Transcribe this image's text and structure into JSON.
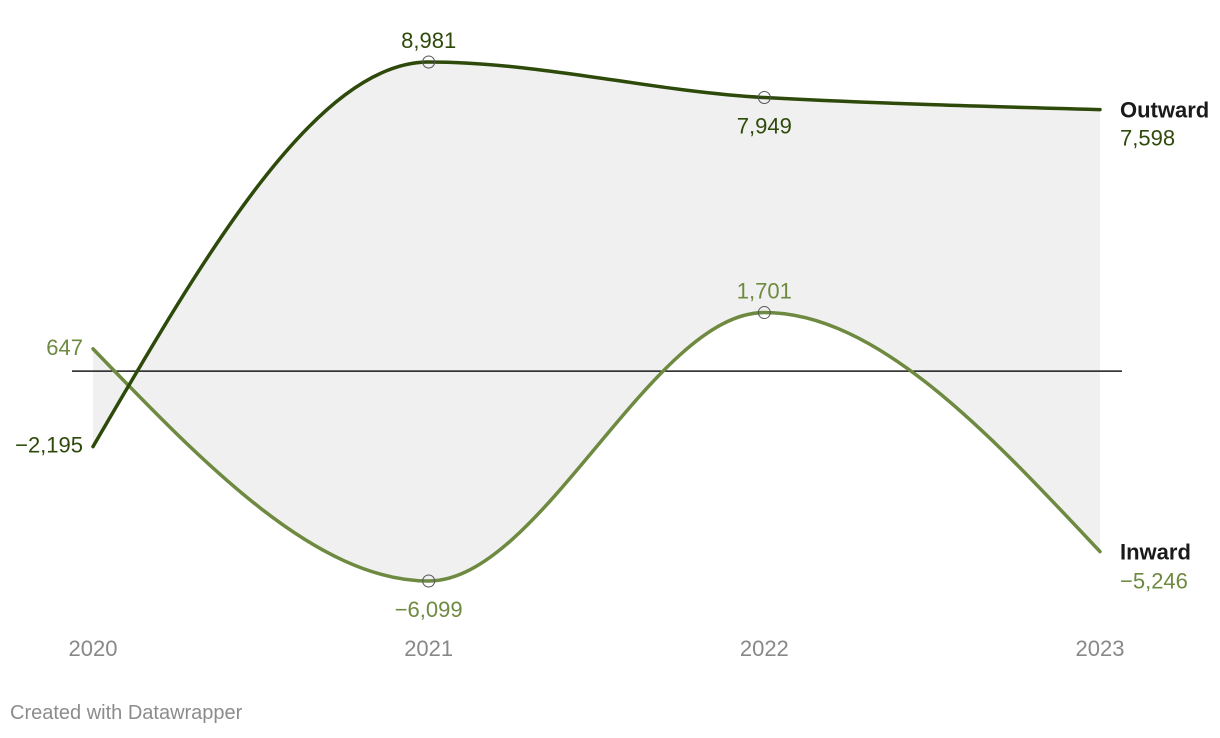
{
  "chart_data": {
    "type": "line",
    "categories": [
      "2020",
      "2021",
      "2022",
      "2023"
    ],
    "series": [
      {
        "name": "Outward",
        "values": [
          -2195,
          8981,
          7949,
          7598
        ],
        "labels": [
          "−2,195",
          "8,981",
          "7,949",
          "7,598"
        ],
        "color": "#2e4a0b"
      },
      {
        "name": "Inward",
        "values": [
          647,
          -6099,
          1701,
          -5246
        ],
        "labels": [
          "647",
          "−6,099",
          "1,701",
          "−5,246"
        ],
        "color": "#6e8a41"
      }
    ],
    "ylim": [
      -7000,
      9500
    ],
    "zero_line": true,
    "range_fill_color": "#f0f0f0",
    "grid": false,
    "legend": "inline-right"
  },
  "footer": {
    "credit": "Created with Datawrapper"
  }
}
